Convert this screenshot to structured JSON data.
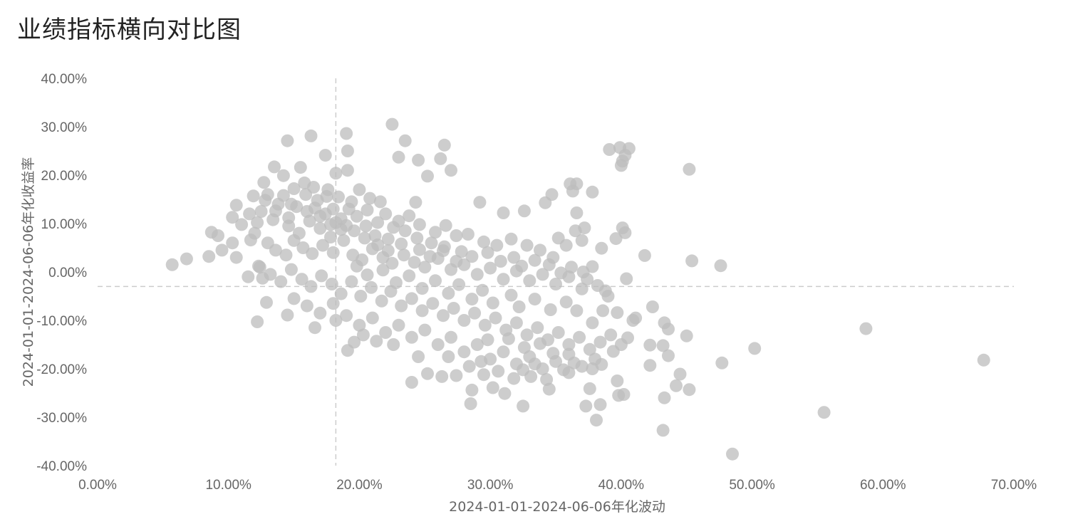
{
  "title": "业绩指标横向对比图",
  "colors": {
    "point": "#bcbcbc",
    "guide": "#cccccc",
    "tick": "#666666"
  },
  "chart_data": {
    "type": "scatter",
    "title": "业绩指标横向对比图",
    "xlabel": "2024-01-01-2024-06-06年化波动",
    "ylabel": "2024-01-01-2024-06-06年化收益率",
    "xlim": [
      0,
      70
    ],
    "ylim": [
      -40,
      40
    ],
    "x_ticks": [
      "0.00%",
      "10.00%",
      "20.00%",
      "30.00%",
      "40.00%",
      "50.00%",
      "60.00%",
      "70.00%"
    ],
    "y_ticks": [
      "40.00%",
      "30.00%",
      "20.00%",
      "10.00%",
      "0.00%",
      "-10.00%",
      "-20.00%",
      "-30.00%",
      "-40.00%"
    ],
    "reference_lines": {
      "x": 18.2,
      "y": -3.0
    },
    "grid": false,
    "points": [
      [
        5.7,
        1.5
      ],
      [
        6.8,
        2.7
      ],
      [
        8.5,
        3.2
      ],
      [
        8.7,
        8.2
      ],
      [
        9.2,
        7.5
      ],
      [
        9.5,
        4.5
      ],
      [
        10.3,
        6.0
      ],
      [
        10.3,
        11.3
      ],
      [
        10.6,
        3.0
      ],
      [
        10.6,
        13.8
      ],
      [
        11.0,
        9.8
      ],
      [
        11.7,
        6.6
      ],
      [
        11.5,
        -1.0
      ],
      [
        12.2,
        -10.3
      ],
      [
        12.7,
        18.5
      ],
      [
        12.9,
        -6.3
      ],
      [
        11.9,
        15.7
      ],
      [
        12.3,
        1.2
      ],
      [
        12.6,
        -1.3
      ],
      [
        14.5,
        27.1
      ],
      [
        16.3,
        28.1
      ],
      [
        17.4,
        24.1
      ],
      [
        18.2,
        20.4
      ],
      [
        19.0,
        28.6
      ],
      [
        19.1,
        25.0
      ],
      [
        19.1,
        21.0
      ],
      [
        14.5,
        -8.9
      ],
      [
        16.6,
        -11.5
      ],
      [
        18.2,
        -10.0
      ],
      [
        19.1,
        -16.2
      ],
      [
        19.6,
        -14.5
      ],
      [
        20.3,
        -13.0
      ],
      [
        21.3,
        -14.3
      ],
      [
        22.6,
        -15.0
      ],
      [
        22.5,
        30.5
      ],
      [
        23.5,
        27.1
      ],
      [
        23.0,
        23.7
      ],
      [
        24.5,
        23.1
      ],
      [
        26.2,
        23.4
      ],
      [
        26.5,
        26.2
      ],
      [
        27.0,
        21.0
      ],
      [
        25.2,
        19.8
      ],
      [
        24.3,
        14.4
      ],
      [
        24.0,
        -22.8
      ],
      [
        24.5,
        -17.5
      ],
      [
        25.2,
        -21.0
      ],
      [
        26.3,
        -21.6
      ],
      [
        27.4,
        -21.4
      ],
      [
        28.6,
        -24.4
      ],
      [
        28.5,
        -27.2
      ],
      [
        29.5,
        -21.2
      ],
      [
        29.3,
        -18.5
      ],
      [
        29.2,
        14.4
      ],
      [
        31.0,
        12.2
      ],
      [
        32.6,
        12.6
      ],
      [
        30.2,
        -23.9
      ],
      [
        31.1,
        -25.1
      ],
      [
        32.5,
        -27.7
      ],
      [
        33.1,
        -21.6
      ],
      [
        32.5,
        -20.2
      ],
      [
        34.3,
        -22.2
      ],
      [
        34.5,
        -24.2
      ],
      [
        34.2,
        14.3
      ],
      [
        34.7,
        16.0
      ],
      [
        36.1,
        18.2
      ],
      [
        36.6,
        18.2
      ],
      [
        36.3,
        16.7
      ],
      [
        36.6,
        12.2
      ],
      [
        37.8,
        16.5
      ],
      [
        37.2,
        9.1
      ],
      [
        38.5,
        4.9
      ],
      [
        37.8,
        1.1
      ],
      [
        37.1,
        0.0
      ],
      [
        39.6,
        6.9
      ],
      [
        40.1,
        9.1
      ],
      [
        40.3,
        8.1
      ],
      [
        40.4,
        -1.4
      ],
      [
        38.8,
        -3.9
      ],
      [
        39.1,
        25.3
      ],
      [
        39.9,
        25.7
      ],
      [
        40.6,
        25.5
      ],
      [
        40.3,
        24.1
      ],
      [
        40.0,
        22.0
      ],
      [
        40.1,
        22.9
      ],
      [
        45.2,
        21.2
      ],
      [
        45.4,
        2.3
      ],
      [
        47.6,
        1.3
      ],
      [
        41.8,
        3.4
      ],
      [
        42.4,
        -7.2
      ],
      [
        42.2,
        -15.1
      ],
      [
        42.2,
        -19.3
      ],
      [
        43.3,
        -10.5
      ],
      [
        43.6,
        -11.8
      ],
      [
        43.2,
        -15.2
      ],
      [
        43.6,
        -17.3
      ],
      [
        43.3,
        -26.0
      ],
      [
        43.2,
        -32.7
      ],
      [
        44.2,
        -23.5
      ],
      [
        44.5,
        -21.1
      ],
      [
        45.0,
        -13.2
      ],
      [
        45.2,
        -24.3
      ],
      [
        47.7,
        -18.8
      ],
      [
        50.2,
        -15.8
      ],
      [
        48.5,
        -37.6
      ],
      [
        55.5,
        -29.0
      ],
      [
        58.7,
        -11.7
      ],
      [
        67.7,
        -18.2
      ],
      [
        39.7,
        -22.5
      ],
      [
        39.8,
        -25.5
      ],
      [
        40.2,
        -25.3
      ],
      [
        38.4,
        -27.4
      ],
      [
        37.3,
        -27.7
      ],
      [
        38.1,
        -30.6
      ],
      [
        37.6,
        -24.1
      ],
      [
        36.0,
        -20.8
      ],
      [
        37.8,
        -20.0
      ],
      [
        38.5,
        -19.1
      ],
      [
        39.4,
        -16.4
      ],
      [
        40.5,
        -13.6
      ],
      [
        40.9,
        -10.0
      ],
      [
        41.1,
        -9.5
      ],
      [
        39.7,
        -8.4
      ],
      [
        13.5,
        21.7
      ],
      [
        14.2,
        19.9
      ],
      [
        15.5,
        21.6
      ],
      [
        15.8,
        18.4
      ],
      [
        16.5,
        17.5
      ],
      [
        17.5,
        15.6
      ],
      [
        18.0,
        13.0
      ],
      [
        13.0,
        16.0
      ],
      [
        12.5,
        12.5
      ],
      [
        13.8,
        14.0
      ],
      [
        14.6,
        11.2
      ],
      [
        15.2,
        13.5
      ],
      [
        16.0,
        12.5
      ],
      [
        17.0,
        11.5
      ],
      [
        17.8,
        9.8
      ],
      [
        18.6,
        11.0
      ],
      [
        19.4,
        14.5
      ],
      [
        20.0,
        17.0
      ],
      [
        20.8,
        15.2
      ],
      [
        21.6,
        14.5
      ],
      [
        22.0,
        12.0
      ],
      [
        23.0,
        10.5
      ],
      [
        19.6,
        8.5
      ],
      [
        20.5,
        9.5
      ],
      [
        21.2,
        7.5
      ],
      [
        22.2,
        6.8
      ],
      [
        23.5,
        8.5
      ],
      [
        24.4,
        7.0
      ],
      [
        25.5,
        6.0
      ],
      [
        26.5,
        5.2
      ],
      [
        27.4,
        7.5
      ],
      [
        28.3,
        7.8
      ],
      [
        29.5,
        6.2
      ],
      [
        30.5,
        5.5
      ],
      [
        31.6,
        6.8
      ],
      [
        32.8,
        5.5
      ],
      [
        33.8,
        4.5
      ],
      [
        34.5,
        1.5
      ],
      [
        35.2,
        7.0
      ],
      [
        35.8,
        5.5
      ],
      [
        36.5,
        8.5
      ],
      [
        37.0,
        6.5
      ],
      [
        12.0,
        8.0
      ],
      [
        13.0,
        6.0
      ],
      [
        13.6,
        4.5
      ],
      [
        14.4,
        3.5
      ],
      [
        15.0,
        6.5
      ],
      [
        15.7,
        5.0
      ],
      [
        16.4,
        3.8
      ],
      [
        17.2,
        5.5
      ],
      [
        18.0,
        4.0
      ],
      [
        18.8,
        6.5
      ],
      [
        19.5,
        3.5
      ],
      [
        20.2,
        2.5
      ],
      [
        21.0,
        4.8
      ],
      [
        21.8,
        3.0
      ],
      [
        22.5,
        1.8
      ],
      [
        23.4,
        3.5
      ],
      [
        24.2,
        2.0
      ],
      [
        25.0,
        1.0
      ],
      [
        26.0,
        2.8
      ],
      [
        27.0,
        0.5
      ],
      [
        28.0,
        1.5
      ],
      [
        29.0,
        -0.5
      ],
      [
        30.0,
        0.8
      ],
      [
        31.0,
        -1.5
      ],
      [
        32.0,
        0.2
      ],
      [
        33.0,
        -1.8
      ],
      [
        34.0,
        -0.5
      ],
      [
        35.0,
        -2.5
      ],
      [
        36.0,
        -1.0
      ],
      [
        37.0,
        -3.5
      ],
      [
        12.4,
        1.0
      ],
      [
        13.2,
        -0.5
      ],
      [
        14.0,
        -2.0
      ],
      [
        14.8,
        0.5
      ],
      [
        15.6,
        -1.5
      ],
      [
        16.3,
        -3.0
      ],
      [
        17.1,
        -0.8
      ],
      [
        17.9,
        -2.5
      ],
      [
        18.6,
        -4.5
      ],
      [
        19.4,
        -2.0
      ],
      [
        20.1,
        -5.0
      ],
      [
        20.9,
        -3.2
      ],
      [
        21.7,
        -6.0
      ],
      [
        22.4,
        -4.0
      ],
      [
        23.2,
        -7.0
      ],
      [
        24.0,
        -5.5
      ],
      [
        24.8,
        -8.0
      ],
      [
        25.6,
        -6.5
      ],
      [
        26.4,
        -9.0
      ],
      [
        27.2,
        -7.5
      ],
      [
        28.0,
        -10.0
      ],
      [
        28.8,
        -8.5
      ],
      [
        29.6,
        -11.0
      ],
      [
        30.4,
        -9.5
      ],
      [
        31.2,
        -12.0
      ],
      [
        32.0,
        -10.5
      ],
      [
        32.8,
        -13.0
      ],
      [
        33.6,
        -11.5
      ],
      [
        34.4,
        -14.0
      ],
      [
        35.2,
        -12.5
      ],
      [
        36.0,
        -15.0
      ],
      [
        36.8,
        -13.5
      ],
      [
        37.6,
        -16.0
      ],
      [
        38.4,
        -14.5
      ],
      [
        39.2,
        -13.0
      ],
      [
        40.0,
        -15.0
      ],
      [
        15.0,
        -5.5
      ],
      [
        16.0,
        -7.0
      ],
      [
        17.0,
        -8.5
      ],
      [
        18.0,
        -6.5
      ],
      [
        19.0,
        -9.0
      ],
      [
        20.0,
        -11.0
      ],
      [
        21.0,
        -9.5
      ],
      [
        22.0,
        -12.5
      ],
      [
        23.0,
        -11.0
      ],
      [
        24.0,
        -13.5
      ],
      [
        25.0,
        -12.0
      ],
      [
        26.0,
        -15.0
      ],
      [
        27.0,
        -13.5
      ],
      [
        28.0,
        -16.5
      ],
      [
        29.0,
        -15.0
      ],
      [
        30.0,
        -18.0
      ],
      [
        31.0,
        -16.5
      ],
      [
        32.0,
        -19.0
      ],
      [
        33.0,
        -17.5
      ],
      [
        34.0,
        -20.0
      ],
      [
        35.0,
        -18.5
      ],
      [
        36.0,
        -17.0
      ],
      [
        37.0,
        -19.5
      ],
      [
        38.0,
        -18.0
      ],
      [
        26.8,
        -17.5
      ],
      [
        28.4,
        -19.5
      ],
      [
        30.6,
        -20.5
      ],
      [
        31.8,
        -22.0
      ],
      [
        33.4,
        -19.0
      ],
      [
        34.8,
        -16.8
      ],
      [
        35.6,
        -20.2
      ],
      [
        36.4,
        -18.8
      ],
      [
        29.8,
        -14.0
      ],
      [
        31.4,
        -13.8
      ],
      [
        32.6,
        -15.6
      ],
      [
        33.8,
        -14.8
      ],
      [
        14.2,
        15.8
      ],
      [
        15.0,
        17.2
      ],
      [
        15.9,
        16.0
      ],
      [
        16.8,
        14.8
      ],
      [
        17.6,
        17.0
      ],
      [
        18.4,
        15.5
      ],
      [
        19.2,
        13.0
      ],
      [
        14.6,
        9.5
      ],
      [
        15.4,
        8.0
      ],
      [
        16.2,
        10.5
      ],
      [
        17.0,
        9.0
      ],
      [
        17.8,
        7.2
      ],
      [
        18.6,
        8.8
      ],
      [
        19.8,
        11.5
      ],
      [
        20.6,
        12.8
      ],
      [
        21.4,
        10.2
      ],
      [
        22.6,
        9.2
      ],
      [
        23.8,
        11.6
      ],
      [
        24.6,
        9.8
      ],
      [
        25.8,
        8.2
      ],
      [
        26.6,
        9.6
      ],
      [
        27.8,
        4.2
      ],
      [
        28.6,
        3.2
      ],
      [
        29.8,
        4.0
      ],
      [
        30.8,
        2.2
      ],
      [
        31.8,
        3.0
      ],
      [
        32.4,
        1.2
      ],
      [
        33.4,
        2.4
      ],
      [
        34.8,
        3.0
      ],
      [
        35.4,
        -0.2
      ],
      [
        36.2,
        1.0
      ],
      [
        37.4,
        -1.5
      ],
      [
        38.2,
        -2.8
      ],
      [
        39.0,
        -5.0
      ],
      [
        38.6,
        -8.0
      ],
      [
        37.8,
        -10.5
      ],
      [
        36.6,
        -8.0
      ],
      [
        35.8,
        -6.2
      ],
      [
        34.6,
        -7.8
      ],
      [
        33.4,
        -5.6
      ],
      [
        32.2,
        -7.2
      ],
      [
        31.6,
        -4.8
      ],
      [
        30.2,
        -6.4
      ],
      [
        29.4,
        -3.8
      ],
      [
        28.6,
        -5.6
      ],
      [
        27.6,
        -2.6
      ],
      [
        26.8,
        -4.4
      ],
      [
        25.8,
        -1.8
      ],
      [
        24.8,
        -3.4
      ],
      [
        23.8,
        -0.8
      ],
      [
        22.8,
        -2.2
      ],
      [
        21.8,
        0.4
      ],
      [
        20.6,
        -0.6
      ],
      [
        19.8,
        1.2
      ],
      [
        13.4,
        10.8
      ],
      [
        12.2,
        10.2
      ],
      [
        11.6,
        12.0
      ],
      [
        12.8,
        14.8
      ],
      [
        13.6,
        12.6
      ],
      [
        14.8,
        14.0
      ],
      [
        16.6,
        13.2
      ],
      [
        17.4,
        12.0
      ],
      [
        18.2,
        10.2
      ],
      [
        19.0,
        9.6
      ],
      [
        20.4,
        7.0
      ],
      [
        21.4,
        5.6
      ],
      [
        22.2,
        4.4
      ],
      [
        23.2,
        5.8
      ],
      [
        24.6,
        4.6
      ],
      [
        25.4,
        3.2
      ],
      [
        26.4,
        4.4
      ],
      [
        27.4,
        2.2
      ]
    ]
  }
}
